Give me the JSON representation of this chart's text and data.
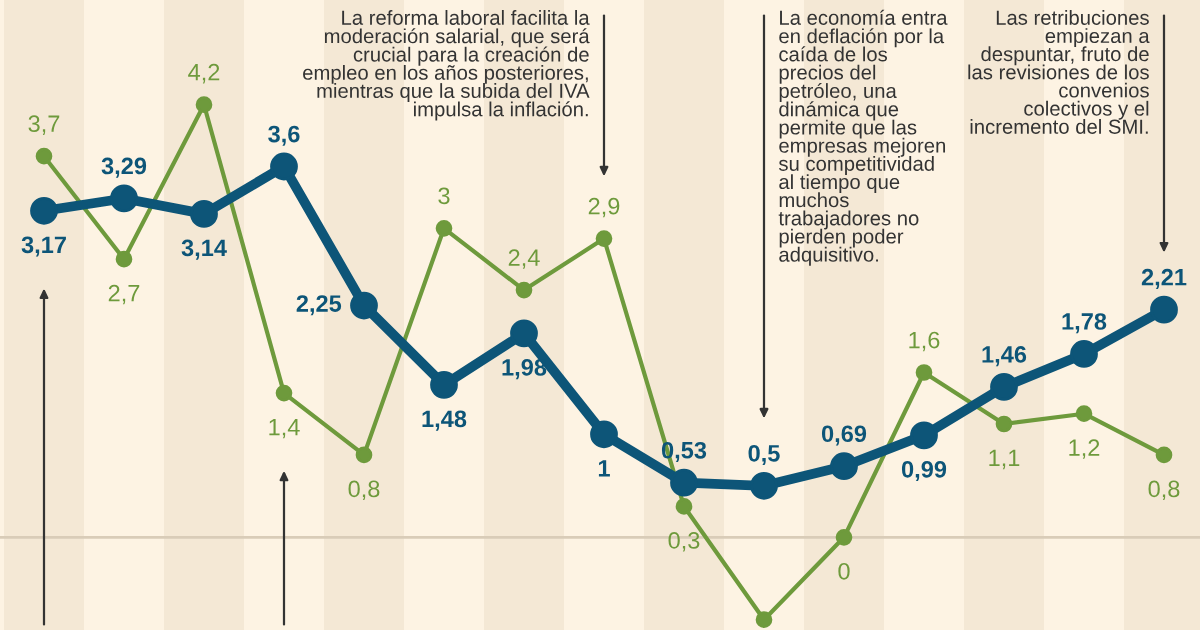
{
  "chart_data": {
    "type": "line",
    "categories": [
      null,
      null,
      null,
      null,
      null,
      null,
      null,
      null,
      null,
      null,
      null,
      null,
      null,
      null,
      null
    ],
    "series": [
      {
        "color": "#6e9a3c",
        "values": [
          3.7,
          2.7,
          4.2,
          1.4,
          0.8,
          3,
          2.4,
          2.9,
          0.3,
          -0.8,
          0,
          1.6,
          1.1,
          1.2,
          0.8
        ],
        "value_labels": [
          "3,7",
          "2,7",
          "4,2",
          "1,4",
          "0,8",
          "3",
          "2,4",
          "2,9",
          "0,3",
          null,
          "0",
          "1,6",
          "1,1",
          "1,2",
          "0,8"
        ]
      },
      {
        "color": "#0d5578",
        "values": [
          3.17,
          3.29,
          3.14,
          3.6,
          2.25,
          1.48,
          1.98,
          1,
          0.53,
          0.5,
          0.69,
          0.99,
          1.46,
          1.78,
          2.21
        ],
        "value_labels": [
          "3,17",
          "3,29",
          "3,14",
          "3,6",
          "2,25",
          "1,48",
          "1,98",
          "1",
          "0,53",
          "0,5",
          "0,69",
          "0,99",
          "1,46",
          "1,78",
          "2,21"
        ]
      }
    ],
    "marker": "circle",
    "annotations": [
      "La reforma laboral facilita la\nmoderación salarial, que será\ncrucial para la creación de\nempleo en los años posteriores,\nmientras que la subida del IVA\nimpulsa la inflación.",
      "La economía entra\nen deflación por la\ncaída de los\nprecios del\npetróleo, una\ndinámica que\npermite que las\nempresas mejoren\nsu competitividad\nal tiempo que\nmuchos\ntrabajadores no\npierden poder\nadquisitivo.",
      "Las retribuciones\nempiezan a\ndespuntar, fruto de\nlas revisiones de los\nconvenios\ncolectivos y el\nincremento del SMI."
    ]
  }
}
